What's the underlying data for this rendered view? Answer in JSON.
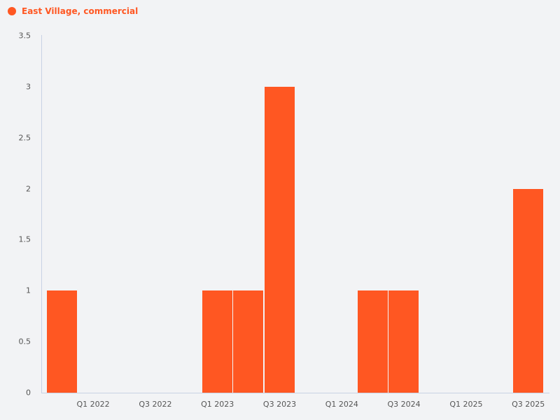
{
  "legend": {
    "label": "East Village, commercial",
    "color": "#ff5722"
  },
  "colors": {
    "bar": "#ff5722",
    "axis": "#c8d2e4",
    "background": "#f2f3f5"
  },
  "chart_data": {
    "type": "bar",
    "title": "",
    "xlabel": "",
    "ylabel": "",
    "ylim": [
      0,
      3.5
    ],
    "grid": false,
    "legend_position": "top-left",
    "y_ticks": [
      "0",
      "0.5",
      "1",
      "1.5",
      "2",
      "2.5",
      "3",
      "3.5"
    ],
    "x_tick_labels": [
      "Q1 2022",
      "Q3 2022",
      "Q1 2023",
      "Q3 2023",
      "Q1 2024",
      "Q3 2024",
      "Q1 2025",
      "Q3 2025"
    ],
    "categories": [
      "Q4 2021",
      "Q1 2022",
      "Q2 2022",
      "Q3 2022",
      "Q4 2022",
      "Q1 2023",
      "Q2 2023",
      "Q3 2023",
      "Q4 2023",
      "Q1 2024",
      "Q2 2024",
      "Q3 2024",
      "Q4 2024",
      "Q1 2025",
      "Q2 2025",
      "Q3 2025"
    ],
    "series": [
      {
        "name": "East Village, commercial",
        "values": [
          1,
          0,
          0,
          0,
          0,
          1,
          1,
          3,
          0,
          0,
          1,
          1,
          0,
          0,
          0,
          2
        ]
      }
    ]
  }
}
